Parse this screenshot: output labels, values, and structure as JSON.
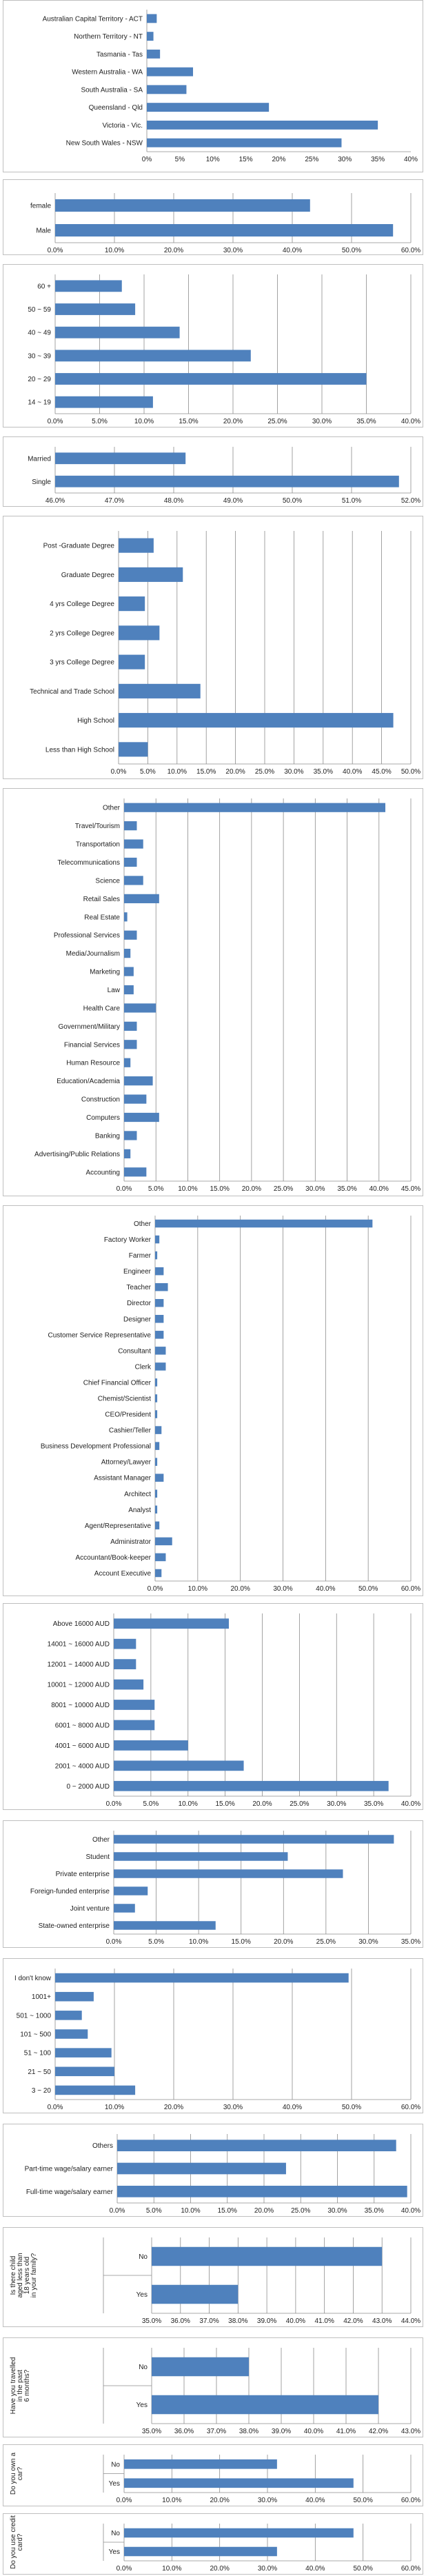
{
  "chart_data": [
    {
      "type": "bar",
      "categories": [
        "Australian Capital Territory - ACT",
        "Northern Territory - NT",
        "Tasmania - Tas",
        "Western Australia - WA",
        "South Australia - SA",
        "Queensland - Qld",
        "Victoria - Vic.",
        "New South Wales - NSW"
      ],
      "values": [
        1.5,
        1.0,
        2.0,
        7.0,
        6.0,
        18.5,
        35.0,
        29.5
      ],
      "xlim": [
        0,
        40
      ],
      "ticks": [
        0,
        5,
        10,
        15,
        20,
        25,
        30,
        35,
        40
      ],
      "tick_format": "pct0",
      "ticks_text": [
        "0%",
        "5%",
        "10%",
        "15%",
        "20%",
        "25%",
        "30%",
        "35%",
        "40%"
      ],
      "grid": false
    },
    {
      "type": "bar",
      "categories": [
        "female",
        "Male"
      ],
      "values": [
        43.0,
        57.0
      ],
      "xlim": [
        0,
        60
      ],
      "ticks": [
        0,
        10,
        20,
        30,
        40,
        50,
        60
      ],
      "tick_format": "pct1",
      "ticks_text": [
        "0.0%",
        "10.0%",
        "20.0%",
        "30.0%",
        "40.0%",
        "50.0%",
        "60.0%"
      ],
      "grid": true
    },
    {
      "type": "bar",
      "categories": [
        "60 +",
        "50 ~ 59",
        "40 ~ 49",
        "30 ~ 39",
        "20 ~ 29",
        "14 ~ 19"
      ],
      "values": [
        7.5,
        9.0,
        14.0,
        22.0,
        35.0,
        11.0
      ],
      "xlim": [
        0,
        40
      ],
      "ticks": [
        0,
        5,
        10,
        15,
        20,
        25,
        30,
        35,
        40
      ],
      "tick_format": "pct1",
      "ticks_text": [
        "0.0%",
        "5.0%",
        "10.0%",
        "15.0%",
        "20.0%",
        "25.0%",
        "30.0%",
        "35.0%",
        "40.0%"
      ],
      "grid": true
    },
    {
      "type": "bar",
      "categories": [
        "Married",
        "Single"
      ],
      "values": [
        48.2,
        51.8
      ],
      "xlim": [
        46,
        52
      ],
      "ticks": [
        46,
        47,
        48,
        49,
        50,
        51,
        52
      ],
      "tick_format": "pct1",
      "ticks_text": [
        "46.0%",
        "47.0%",
        "48.0%",
        "49.0%",
        "50.0%",
        "51.0%",
        "52.0%"
      ],
      "grid": true
    },
    {
      "type": "bar",
      "categories": [
        "Post -Graduate Degree",
        "Graduate Degree",
        "4 yrs College Degree",
        "2 yrs College Degree",
        "3 yrs College Degree",
        "Technical and Trade School",
        "High School",
        "Less than High School"
      ],
      "values": [
        6.0,
        11.0,
        4.5,
        7.0,
        4.5,
        14.0,
        47.0,
        5.0
      ],
      "xlim": [
        0,
        50
      ],
      "ticks": [
        0,
        5,
        10,
        15,
        20,
        25,
        30,
        35,
        40,
        45,
        50
      ],
      "tick_format": "pct1",
      "ticks_text": [
        "0.0%",
        "5.0%",
        "10.0%",
        "15.0%",
        "20.0%",
        "25.0%",
        "30.0%",
        "35.0%",
        "40.0%",
        "45.0%",
        "50.0%"
      ],
      "grid": true
    },
    {
      "type": "bar",
      "categories": [
        "Other",
        "Travel/Tourism",
        "Transportation",
        "Telecommunications",
        "Science",
        "Retail Sales",
        "Real Estate",
        "Professional Services",
        "Media/Journalism",
        "Marketing",
        "Law",
        "Health Care",
        "Government/Military",
        "Financial Services",
        "Human Resource",
        "Education/Academia",
        "Construction",
        "Computers",
        "Banking",
        "Advertising/Public Relations",
        "Accounting"
      ],
      "values": [
        41.0,
        2.0,
        3.0,
        2.0,
        3.0,
        5.5,
        0.5,
        2.0,
        1.0,
        1.5,
        1.5,
        5.0,
        2.0,
        2.0,
        1.0,
        4.5,
        3.5,
        5.5,
        2.0,
        1.0,
        3.5
      ],
      "xlim": [
        0,
        45
      ],
      "ticks": [
        0,
        5,
        10,
        15,
        20,
        25,
        30,
        35,
        40,
        45
      ],
      "tick_format": "pct1",
      "ticks_text": [
        "0.0%",
        "5.0%",
        "10.0%",
        "15.0%",
        "20.0%",
        "25.0%",
        "30.0%",
        "35.0%",
        "40.0%",
        "45.0%"
      ],
      "grid": true
    },
    {
      "type": "bar",
      "categories": [
        "Other",
        "Factory Worker",
        "Farmer",
        "Engineer",
        "Teacher",
        "Director",
        "Designer",
        "Customer Service Representative",
        "Consultant",
        "Clerk",
        "Chief Financial Officer",
        "Chemist/Scientist",
        "CEO/President",
        "Cashier/Teller",
        "Business Development Professional",
        "Attorney/Lawyer",
        "Assistant Manager",
        "Architect",
        "Analyst",
        "Agent/Representative",
        "Administrator",
        "Accountant/Book-keeper",
        "Account Executive"
      ],
      "values": [
        51.0,
        1.0,
        0.5,
        2.0,
        3.0,
        2.0,
        2.0,
        2.0,
        2.5,
        2.5,
        0.5,
        0.5,
        0.5,
        1.5,
        1.0,
        0.5,
        2.0,
        0.5,
        0.5,
        1.0,
        4.0,
        2.5,
        1.5
      ],
      "xlim": [
        0,
        60
      ],
      "ticks": [
        0,
        10,
        20,
        30,
        40,
        50,
        60
      ],
      "tick_format": "pct1",
      "ticks_text": [
        "0.0%",
        "10.0%",
        "20.0%",
        "30.0%",
        "40.0%",
        "50.0%",
        "60.0%"
      ],
      "grid": true
    },
    {
      "type": "bar",
      "categories": [
        "Above 16000 AUD",
        "14001 ~ 16000 AUD",
        "12001 ~ 14000 AUD",
        "10001 ~ 12000 AUD",
        "8001 ~ 10000 AUD",
        "6001 ~ 8000 AUD",
        "4001 ~ 6000 AUD",
        "2001 ~ 4000 AUD",
        "0 ~ 2000 AUD"
      ],
      "values": [
        15.5,
        3.0,
        3.0,
        4.0,
        5.5,
        5.5,
        10.0,
        17.5,
        37.0
      ],
      "xlim": [
        0,
        40
      ],
      "ticks": [
        0,
        5,
        10,
        15,
        20,
        25,
        30,
        35,
        40
      ],
      "tick_format": "pct1",
      "ticks_text": [
        "0.0%",
        "5.0%",
        "10.0%",
        "15.0%",
        "20.0%",
        "25.0%",
        "30.0%",
        "35.0%",
        "40.0%"
      ],
      "grid": true
    },
    {
      "type": "bar",
      "categories": [
        "Other",
        "Student",
        "Private enterprise",
        "Foreign-funded enterprise",
        "Joint venture",
        "State-owned enterprise"
      ],
      "values": [
        33.0,
        20.5,
        27.0,
        4.0,
        2.5,
        12.0
      ],
      "xlim": [
        0,
        35
      ],
      "ticks": [
        0,
        5,
        10,
        15,
        20,
        25,
        30,
        35
      ],
      "tick_format": "pct1",
      "ticks_text": [
        "0.0%",
        "5.0%",
        "10.0%",
        "15.0%",
        "20.0%",
        "25.0%",
        "30.0%",
        "35.0%"
      ],
      "grid": true
    },
    {
      "type": "bar",
      "categories": [
        "I don't know",
        "1001+",
        "501 ~ 1000",
        "101 ~ 500",
        "51 ~ 100",
        "21 ~ 50",
        "3 ~ 20"
      ],
      "values": [
        49.5,
        6.5,
        4.5,
        5.5,
        9.5,
        10.0,
        13.5
      ],
      "xlim": [
        0,
        60
      ],
      "ticks": [
        0,
        10,
        20,
        30,
        40,
        50,
        60
      ],
      "tick_format": "pct1",
      "ticks_text": [
        "0.0%",
        "10.0%",
        "20.0%",
        "30.0%",
        "40.0%",
        "50.0%",
        "60.0%"
      ],
      "grid": true
    },
    {
      "type": "bar",
      "categories": [
        "Others",
        "Part-time wage/salary earner",
        "Full-time wage/salary earner"
      ],
      "values": [
        38.0,
        23.0,
        39.5
      ],
      "xlim": [
        0,
        40
      ],
      "ticks": [
        0,
        5,
        10,
        15,
        20,
        25,
        30,
        35,
        40
      ],
      "tick_format": "pct1",
      "ticks_text": [
        "0.0%",
        "5.0%",
        "10.0%",
        "15.0%",
        "20.0%",
        "25.0%",
        "30.0%",
        "35.0%",
        "40.0%"
      ],
      "grid": true
    },
    {
      "type": "bar",
      "group_label": "Is there child aged less than 18 years old in your family?",
      "categories": [
        "No",
        "Yes"
      ],
      "values": [
        43.0,
        38.0
      ],
      "xlim": [
        35,
        44
      ],
      "ticks": [
        35,
        36,
        37,
        38,
        39,
        40,
        41,
        42,
        43,
        44
      ],
      "tick_format": "pct1",
      "ticks_text": [
        "35.0%",
        "36.0%",
        "37.0%",
        "38.0%",
        "39.0%",
        "40.0%",
        "41.0%",
        "42.0%",
        "43.0%",
        "44.0%"
      ],
      "grid": true
    },
    {
      "type": "bar",
      "group_label": "Have you travelled in the past 6 months?",
      "categories": [
        "No",
        "Yes"
      ],
      "values": [
        38.0,
        42.0
      ],
      "xlim": [
        35,
        43
      ],
      "ticks": [
        35,
        36,
        37,
        38,
        39,
        40,
        41,
        42,
        43
      ],
      "tick_format": "pct1",
      "ticks_text": [
        "35.0%",
        "36.0%",
        "37.0%",
        "38.0%",
        "39.0%",
        "40.0%",
        "41.0%",
        "42.0%",
        "43.0%"
      ],
      "grid": true
    },
    {
      "type": "bar",
      "group_label": "Do you own a car?",
      "categories": [
        "No",
        "Yes"
      ],
      "values": [
        32.0,
        48.0
      ],
      "xlim": [
        0,
        60
      ],
      "ticks": [
        0,
        10,
        20,
        30,
        40,
        50,
        60
      ],
      "tick_format": "pct1",
      "ticks_text": [
        "0.0%",
        "10.0%",
        "20.0%",
        "30.0%",
        "40.0%",
        "50.0%",
        "60.0%"
      ],
      "grid": true
    },
    {
      "type": "bar",
      "group_label": "Do you use credit card?",
      "categories": [
        "No",
        "Yes"
      ],
      "values": [
        48.0,
        32.0
      ],
      "xlim": [
        0,
        60
      ],
      "ticks": [
        0,
        10,
        20,
        30,
        40,
        50,
        60
      ],
      "tick_format": "pct1",
      "ticks_text": [
        "0.0%",
        "10.0%",
        "20.0%",
        "30.0%",
        "40.0%",
        "50.0%",
        "60.0%"
      ],
      "grid": true
    }
  ]
}
